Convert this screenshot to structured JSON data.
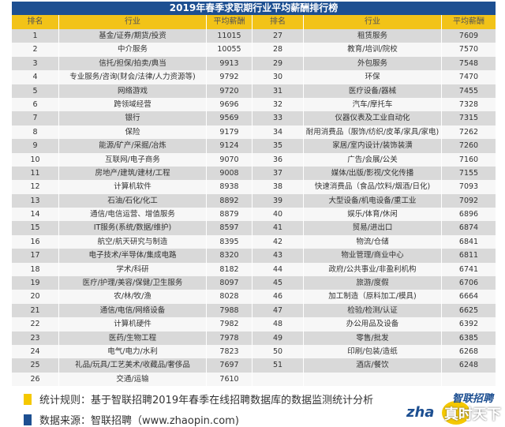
{
  "title": "2019年春季求职期行业平均薪酬排行榜",
  "headers": [
    "排名",
    "行业",
    "平均薪酬",
    "排名",
    "行业",
    "平均薪酬"
  ],
  "colors": {
    "title_bg": "#1d4f91",
    "header_bg": "#f2c318",
    "row_alt": "#d9d9d9"
  },
  "rows": [
    {
      "r1": "1",
      "i1": "基金/证券/期货/投资",
      "s1": "11015",
      "r2": "27",
      "i2": "租赁服务",
      "s2": "7609"
    },
    {
      "r1": "2",
      "i1": "中介服务",
      "s1": "10055",
      "r2": "28",
      "i2": "教育/培训/院校",
      "s2": "7570"
    },
    {
      "r1": "3",
      "i1": "信托/担保/拍卖/典当",
      "s1": "9913",
      "r2": "29",
      "i2": "外包服务",
      "s2": "7548"
    },
    {
      "r1": "4",
      "i1": "专业服务/咨询(财会/法律/人力资源等)",
      "s1": "9792",
      "r2": "30",
      "i2": "环保",
      "s2": "7470"
    },
    {
      "r1": "5",
      "i1": "网络游戏",
      "s1": "9720",
      "r2": "31",
      "i2": "医疗设备/器械",
      "s2": "7455"
    },
    {
      "r1": "6",
      "i1": "跨领域经营",
      "s1": "9696",
      "r2": "32",
      "i2": "汽车/摩托车",
      "s2": "7328"
    },
    {
      "r1": "7",
      "i1": "银行",
      "s1": "9569",
      "r2": "33",
      "i2": "仪器仪表及工业自动化",
      "s2": "7315"
    },
    {
      "r1": "8",
      "i1": "保险",
      "s1": "9179",
      "r2": "34",
      "i2": "耐用消费品（服饰/纺织/皮革/家具/家电)",
      "s2": "7262"
    },
    {
      "r1": "9",
      "i1": "能源/矿产/采掘/冶炼",
      "s1": "9124",
      "r2": "35",
      "i2": "家居/室内设计/装饰装潢",
      "s2": "7260"
    },
    {
      "r1": "10",
      "i1": "互联网/电子商务",
      "s1": "9070",
      "r2": "36",
      "i2": "广告/会展/公关",
      "s2": "7160"
    },
    {
      "r1": "11",
      "i1": "房地产/建筑/建材/工程",
      "s1": "9008",
      "r2": "37",
      "i2": "媒体/出版/影视/文化传播",
      "s2": "7155"
    },
    {
      "r1": "12",
      "i1": "计算机软件",
      "s1": "8938",
      "r2": "38",
      "i2": "快速消费品（食品/饮料/烟酒/日化)",
      "s2": "7093"
    },
    {
      "r1": "13",
      "i1": "石油/石化/化工",
      "s1": "8892",
      "r2": "39",
      "i2": "大型设备/机电设备/重工业",
      "s2": "7092"
    },
    {
      "r1": "14",
      "i1": "通信/电信运营、增值服务",
      "s1": "8879",
      "r2": "40",
      "i2": "娱乐/体育/休闲",
      "s2": "6896"
    },
    {
      "r1": "15",
      "i1": "IT服务(系统/数据/维护)",
      "s1": "8597",
      "r2": "41",
      "i2": "贸易/进出口",
      "s2": "6874"
    },
    {
      "r1": "16",
      "i1": "航空/航天研究与制造",
      "s1": "8395",
      "r2": "42",
      "i2": "物流/仓储",
      "s2": "6841"
    },
    {
      "r1": "17",
      "i1": "电子技术/半导体/集成电路",
      "s1": "8320",
      "r2": "43",
      "i2": "物业管理/商业中心",
      "s2": "6811"
    },
    {
      "r1": "18",
      "i1": "学术/科研",
      "s1": "8182",
      "r2": "44",
      "i2": "政府/公共事业/非盈利机构",
      "s2": "6741"
    },
    {
      "r1": "19",
      "i1": "医疗/护理/美容/保健/卫生服务",
      "s1": "8097",
      "r2": "45",
      "i2": "旅游/度假",
      "s2": "6706"
    },
    {
      "r1": "20",
      "i1": "农/林/牧/渔",
      "s1": "8028",
      "r2": "46",
      "i2": "加工制造（原料加工/模具)",
      "s2": "6664"
    },
    {
      "r1": "21",
      "i1": "通信/电信/网络设备",
      "s1": "7988",
      "r2": "47",
      "i2": "检验/检测/认证",
      "s2": "6625"
    },
    {
      "r1": "22",
      "i1": "计算机硬件",
      "s1": "7982",
      "r2": "48",
      "i2": "办公用品及设备",
      "s2": "6392"
    },
    {
      "r1": "23",
      "i1": "医药/生物工程",
      "s1": "7978",
      "r2": "49",
      "i2": "零售/批发",
      "s2": "6385"
    },
    {
      "r1": "24",
      "i1": "电气/电力/水利",
      "s1": "7823",
      "r2": "50",
      "i2": "印刷/包装/造纸",
      "s2": "6268"
    },
    {
      "r1": "25",
      "i1": "礼品/玩具/工艺美术/收藏品/奢侈品",
      "s1": "7697",
      "r2": "51",
      "i2": "酒店/餐饮",
      "s2": "6248"
    },
    {
      "r1": "26",
      "i1": "交通/运输",
      "s1": "7610",
      "r2": "",
      "i2": "",
      "s2": ""
    }
  ],
  "footer": {
    "rule": "统计规则：基于智联招聘2019年春季在线招聘数据库的数据监测统计分析",
    "source": "数据来源：智联招聘（www.zhaopin.com)"
  },
  "logo": {
    "top": "智联招聘",
    "left": "zha",
    "watermark": "真时天下"
  }
}
